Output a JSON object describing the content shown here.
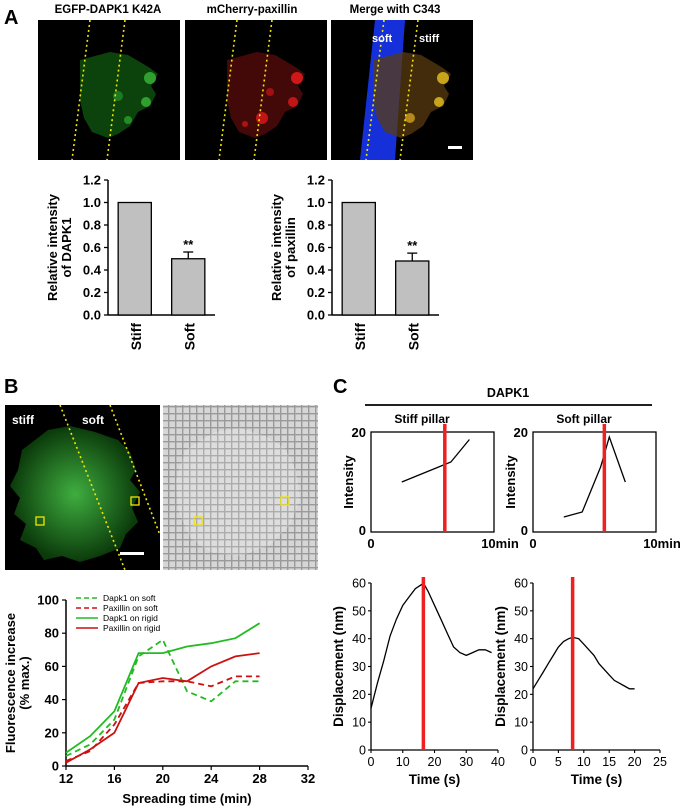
{
  "panel_letters": {
    "a": "A",
    "b": "B",
    "c": "C"
  },
  "panel_a": {
    "image_titles": [
      "EGFP-DAPK1 K42A",
      "mCherry-paxillin",
      "Merge with C343"
    ],
    "merge_labels": {
      "soft": "soft",
      "stiff": "stiff"
    }
  },
  "panel_b": {
    "image_labels": {
      "stiff": "stiff",
      "soft": "soft"
    }
  },
  "panel_c": {
    "header": "DAPK1",
    "left_title": "Stiff pillar",
    "right_title": "Soft pillar"
  },
  "colors": {
    "green": "#22bb22",
    "red": "#cc1111",
    "bar": "#c0c0c0",
    "marker": "#ee2020"
  },
  "chart_data": [
    {
      "id": "A1",
      "type": "bar",
      "categories": [
        "Stiff",
        "Soft"
      ],
      "values": [
        1.0,
        0.5
      ],
      "errors": [
        0,
        0.06
      ],
      "significance": [
        "",
        "**"
      ],
      "ylabel": "Relative intensity\nof DAPK1",
      "ylim": [
        0,
        1.2
      ],
      "yticks": [
        "0.0",
        "0.2",
        "0.4",
        "0.6",
        "0.8",
        "1.0",
        "1.2"
      ]
    },
    {
      "id": "A2",
      "type": "bar",
      "categories": [
        "Stiff",
        "Soft"
      ],
      "values": [
        1.0,
        0.48
      ],
      "errors": [
        0,
        0.07
      ],
      "significance": [
        "",
        "**"
      ],
      "ylabel": "Relative intensity\nof paxillin",
      "ylim": [
        0,
        1.2
      ],
      "yticks": [
        "0.0",
        "0.2",
        "0.4",
        "0.6",
        "0.8",
        "1.0",
        "1.2"
      ]
    },
    {
      "id": "B",
      "type": "line",
      "xlabel": "Spreading time (min)",
      "ylabel": "Fluorescence increase\n(% max.)",
      "xlim": [
        12,
        32
      ],
      "ylim": [
        0,
        100
      ],
      "xticks": [
        "12",
        "16",
        "20",
        "24",
        "28",
        "32"
      ],
      "yticks": [
        "0",
        "20",
        "40",
        "60",
        "80",
        "100"
      ],
      "legend": "top-left",
      "series": [
        {
          "name": "Dapk1 on soft",
          "color": "green",
          "dash": true,
          "x": [
            12,
            14,
            16,
            18,
            20,
            22,
            24,
            26,
            28
          ],
          "y": [
            6,
            13,
            28,
            66,
            76,
            45,
            39,
            51,
            51
          ]
        },
        {
          "name": "Paxillin on soft",
          "color": "red",
          "dash": true,
          "x": [
            12,
            14,
            16,
            18,
            20,
            22,
            24,
            26,
            28
          ],
          "y": [
            3,
            9,
            25,
            50,
            51,
            51,
            48,
            54,
            54
          ]
        },
        {
          "name": "Dapk1 on rigid",
          "color": "green",
          "dash": false,
          "x": [
            12,
            14,
            16,
            18,
            20,
            22,
            24,
            26,
            28
          ],
          "y": [
            8,
            18,
            33,
            68,
            68,
            72,
            74,
            77,
            86
          ]
        },
        {
          "name": "Paxillin on rigid",
          "color": "red",
          "dash": false,
          "x": [
            12,
            14,
            16,
            18,
            20,
            22,
            24,
            26,
            28
          ],
          "y": [
            2,
            10,
            20,
            50,
            53,
            51,
            60,
            66,
            68
          ]
        }
      ]
    },
    {
      "id": "C1",
      "type": "line",
      "ylabel": "Intensity",
      "xlim": [
        0,
        10
      ],
      "ylim": [
        0,
        20
      ],
      "x_tick_labels": [
        "0",
        "10min"
      ],
      "y_tick_labels": [
        "0",
        "20"
      ],
      "marker_x": 6,
      "series": [
        {
          "x": [
            2.5,
            4,
            5.5,
            6.5,
            8
          ],
          "y": [
            10,
            11.5,
            13,
            14,
            18.5
          ]
        }
      ]
    },
    {
      "id": "C2",
      "type": "line",
      "ylabel": "Displacement (nm)",
      "xlabel": "Time (s)",
      "xlim": [
        0,
        40
      ],
      "ylim": [
        0,
        60
      ],
      "xticks": [
        "0",
        "10",
        "20",
        "30",
        "40"
      ],
      "yticks": [
        "0",
        "10",
        "20",
        "30",
        "40",
        "50",
        "60"
      ],
      "marker_x": 16.5,
      "series": [
        {
          "x": [
            0,
            2,
            4,
            6,
            8,
            10,
            12,
            14,
            16,
            17,
            18,
            20,
            22,
            24,
            26,
            28,
            30,
            32,
            34,
            36,
            38
          ],
          "y": [
            15,
            24,
            32,
            41,
            47,
            52,
            55,
            58,
            59.5,
            59,
            57,
            52,
            47,
            42,
            37,
            35,
            34,
            35,
            36,
            36,
            35
          ]
        }
      ]
    },
    {
      "id": "C3",
      "type": "line",
      "ylabel": "Intensity",
      "xlim": [
        0,
        10
      ],
      "ylim": [
        0,
        20
      ],
      "x_tick_labels": [
        "0",
        "10min"
      ],
      "y_tick_labels": [
        "0",
        "20"
      ],
      "marker_x": 5.8,
      "series": [
        {
          "x": [
            2.5,
            4,
            5.5,
            6.2,
            7.5
          ],
          "y": [
            3,
            4,
            13,
            19,
            10
          ]
        }
      ]
    },
    {
      "id": "C4",
      "type": "line",
      "ylabel": "Displacement (nm)",
      "xlabel": "Time (s)",
      "xlim": [
        0,
        25
      ],
      "ylim": [
        0,
        60
      ],
      "xticks": [
        "0",
        "5",
        "10",
        "15",
        "20",
        "25"
      ],
      "yticks": [
        "0",
        "10",
        "20",
        "30",
        "40",
        "50",
        "60"
      ],
      "marker_x": 7.8,
      "series": [
        {
          "x": [
            0,
            1,
            2,
            3,
            4,
            5,
            6,
            7,
            7.8,
            9,
            10,
            11,
            12,
            13,
            14,
            15,
            16,
            17,
            18,
            19,
            20
          ],
          "y": [
            22,
            25,
            28,
            31,
            34,
            37,
            39,
            40,
            40.5,
            40,
            38,
            36,
            34,
            31,
            29,
            27,
            25,
            24,
            23,
            22,
            22
          ]
        }
      ]
    }
  ]
}
